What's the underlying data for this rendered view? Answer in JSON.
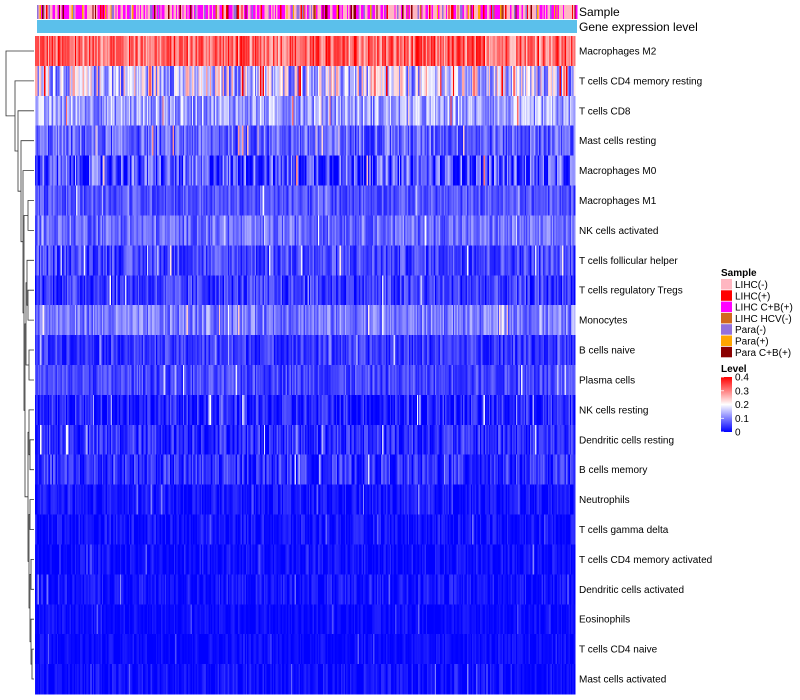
{
  "chart_data": {
    "type": "heatmap",
    "annotation_labels": {
      "sample": "Sample",
      "gene_expression": "Gene expression level"
    },
    "rows": [
      {
        "name": "Macrophages M2",
        "mean": 0.31,
        "spread": 0.08
      },
      {
        "name": "T cells CD4 memory resting",
        "mean": 0.15,
        "spread": 0.12
      },
      {
        "name": "T cells CD8",
        "mean": 0.12,
        "spread": 0.07
      },
      {
        "name": "Mast cells resting",
        "mean": 0.07,
        "spread": 0.06
      },
      {
        "name": "Macrophages M0",
        "mean": 0.05,
        "spread": 0.09
      },
      {
        "name": "Macrophages M1",
        "mean": 0.06,
        "spread": 0.04
      },
      {
        "name": "NK cells activated",
        "mean": 0.08,
        "spread": 0.05
      },
      {
        "name": "T cells follicular helper",
        "mean": 0.05,
        "spread": 0.05
      },
      {
        "name": "T cells regulatory  Tregs",
        "mean": 0.04,
        "spread": 0.05
      },
      {
        "name": "Monocytes",
        "mean": 0.09,
        "spread": 0.05
      },
      {
        "name": "B cells naive",
        "mean": 0.04,
        "spread": 0.04
      },
      {
        "name": "Plasma cells",
        "mean": 0.05,
        "spread": 0.04
      },
      {
        "name": "NK cells resting",
        "mean": 0.02,
        "spread": 0.05
      },
      {
        "name": "Dendritic cells resting",
        "mean": 0.03,
        "spread": 0.05
      },
      {
        "name": "B cells memory",
        "mean": 0.03,
        "spread": 0.05
      },
      {
        "name": "Neutrophils",
        "mean": 0.01,
        "spread": 0.03
      },
      {
        "name": "T cells gamma delta",
        "mean": 0.01,
        "spread": 0.03
      },
      {
        "name": "T cells CD4 memory activated",
        "mean": 0.005,
        "spread": 0.03
      },
      {
        "name": "Dendritic cells activated",
        "mean": 0.01,
        "spread": 0.03
      },
      {
        "name": "Eosinophils",
        "mean": 0.005,
        "spread": 0.02
      },
      {
        "name": "T cells CD4 naive",
        "mean": 0.005,
        "spread": 0.02
      },
      {
        "name": "Mast cells activated",
        "mean": 0.005,
        "spread": 0.03
      }
    ],
    "sample_legend": {
      "title": "Sample",
      "items": [
        {
          "label": "LIHC(-)",
          "color": "#FFB6C1"
        },
        {
          "label": "LIHC(+)",
          "color": "#FF0000"
        },
        {
          "label": "LIHC C+B(+)",
          "color": "#FF00FF"
        },
        {
          "label": "LIHC HCV(-)",
          "color": "#D2691E"
        },
        {
          "label": "Para(-)",
          "color": "#9370DB"
        },
        {
          "label": "Para(+)",
          "color": "#FFA500"
        },
        {
          "label": "Para C+B(+)",
          "color": "#8B0000"
        }
      ]
    },
    "level_legend": {
      "title": "Level",
      "ticks": [
        "0.4",
        "0.3",
        "0.2",
        "0.1",
        "0"
      ],
      "range": [
        0,
        0.4
      ],
      "colors": {
        "low": "#0000FF",
        "mid": "#FFFFFF",
        "high": "#FF0000"
      }
    },
    "gene_expression_color": "#5BC0EB",
    "n_samples": 420
  }
}
